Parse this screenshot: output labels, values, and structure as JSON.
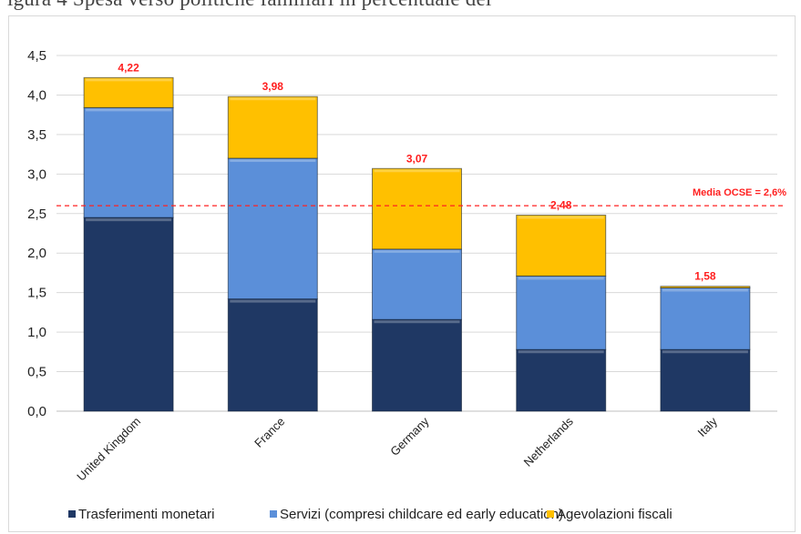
{
  "caption": "igura 4 Spesa verso politiche familiari in percentuale del",
  "chart_data": {
    "type": "bar",
    "stacked": true,
    "categories": [
      "United Kingdom",
      "France",
      "Germany",
      "Netherlands",
      "Italy"
    ],
    "series": [
      {
        "name": "Trasferimenti monetari",
        "color": "#1f3864",
        "values": [
          2.45,
          1.42,
          1.16,
          0.78,
          0.78
        ]
      },
      {
        "name": "Servizi (compresi childcare ed early education)",
        "color": "#5b8fd9",
        "values": [
          1.39,
          1.78,
          0.89,
          0.93,
          0.78
        ]
      },
      {
        "name": "Agevolazioni fiscali",
        "color": "#ffc000",
        "values": [
          0.38,
          0.78,
          1.02,
          0.77,
          0.02
        ]
      }
    ],
    "totals": [
      "4,22",
      "3,98",
      "3,07",
      "2,48",
      "1,58"
    ],
    "y_ticks": [
      "0,0",
      "0,5",
      "1,0",
      "1,5",
      "2,0",
      "2,5",
      "3,0",
      "3,5",
      "4,0",
      "4,5"
    ],
    "ylim": [
      0,
      4.5
    ],
    "grid": true,
    "legend_position": "bottom",
    "reference_line": {
      "value": 2.6,
      "label": "Media OCSE = 2,6%",
      "color": "#ff2020"
    }
  }
}
